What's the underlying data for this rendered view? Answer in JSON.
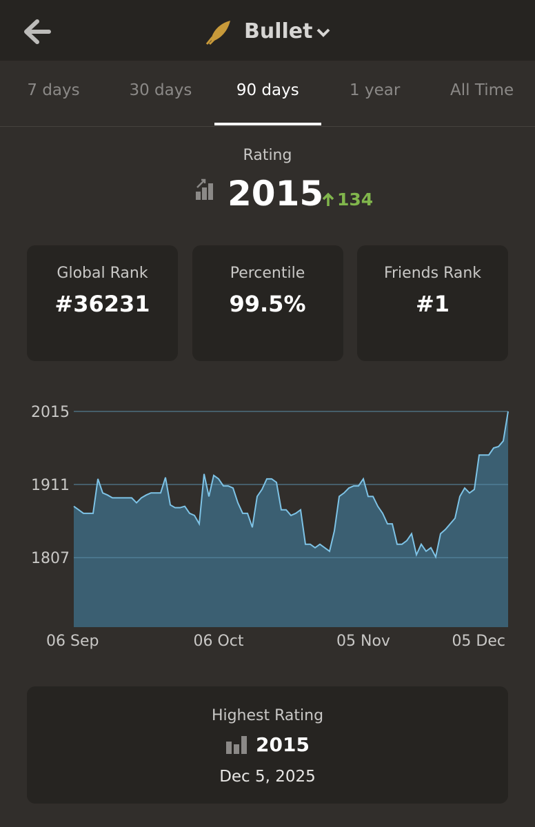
{
  "header": {
    "title": "Bullet"
  },
  "tabs": {
    "items": [
      "7 days",
      "30 days",
      "90 days",
      "1 year",
      "All Time"
    ],
    "active": 2
  },
  "rating": {
    "label": "Rating",
    "value": "2015",
    "change": "134"
  },
  "stats": [
    {
      "label": "Global Rank",
      "value": "#36231"
    },
    {
      "label": "Percentile",
      "value": "99.5%"
    },
    {
      "label": "Friends Rank",
      "value": "#1"
    }
  ],
  "chart_data": {
    "type": "area",
    "color": "#7ec3e6",
    "fill": "#3b5f72",
    "grid": true,
    "x": [
      0,
      1,
      2,
      3,
      4,
      5,
      6,
      7,
      8,
      9,
      10,
      11,
      12,
      13,
      14,
      15,
      16,
      17,
      18,
      19,
      20,
      21,
      22,
      23,
      24,
      25,
      26,
      27,
      28,
      29,
      30,
      31,
      32,
      33,
      34,
      35,
      36,
      37,
      38,
      39,
      40,
      41,
      42,
      43,
      44,
      45,
      46,
      47,
      48,
      49,
      50,
      51,
      52,
      53,
      54,
      55,
      56,
      57,
      58,
      59,
      60,
      61,
      62,
      63,
      64,
      65,
      66,
      67,
      68,
      69,
      70,
      71,
      72,
      73,
      74,
      75,
      76,
      77,
      78,
      79,
      80,
      81,
      82,
      83,
      84,
      85,
      86,
      87,
      88,
      89,
      90
    ],
    "values": [
      1880,
      1875,
      1870,
      1870,
      1870,
      1919,
      1899,
      1896,
      1892,
      1892,
      1892,
      1892,
      1892,
      1885,
      1892,
      1896,
      1899,
      1899,
      1899,
      1921,
      1882,
      1878,
      1878,
      1880,
      1870,
      1867,
      1855,
      1926,
      1894,
      1924,
      1919,
      1909,
      1909,
      1906,
      1885,
      1870,
      1870,
      1850,
      1894,
      1904,
      1919,
      1919,
      1914,
      1875,
      1875,
      1867,
      1870,
      1875,
      1826,
      1826,
      1821,
      1826,
      1821,
      1816,
      1845,
      1894,
      1899,
      1906,
      1909,
      1909,
      1919,
      1894,
      1894,
      1880,
      1870,
      1855,
      1855,
      1826,
      1826,
      1831,
      1841,
      1811,
      1826,
      1816,
      1821,
      1808,
      1841,
      1847,
      1855,
      1863,
      1894,
      1906,
      1899,
      1904,
      1953,
      1953,
      1953,
      1963,
      1965,
      1973,
      2015
    ],
    "xlim": [
      0,
      90
    ],
    "xticks": [
      {
        "value": 0,
        "label": "06 Sep"
      },
      {
        "value": 30,
        "label": "06 Oct"
      },
      {
        "value": 60,
        "label": "05 Nov"
      },
      {
        "value": 90,
        "label": "05 Dec"
      }
    ],
    "ylim": [
      1708,
      2015
    ],
    "yticks": [
      2015,
      1911,
      1807
    ]
  },
  "highest": {
    "label": "Highest Rating",
    "value": "2015",
    "date": "Dec 5, 2025"
  }
}
